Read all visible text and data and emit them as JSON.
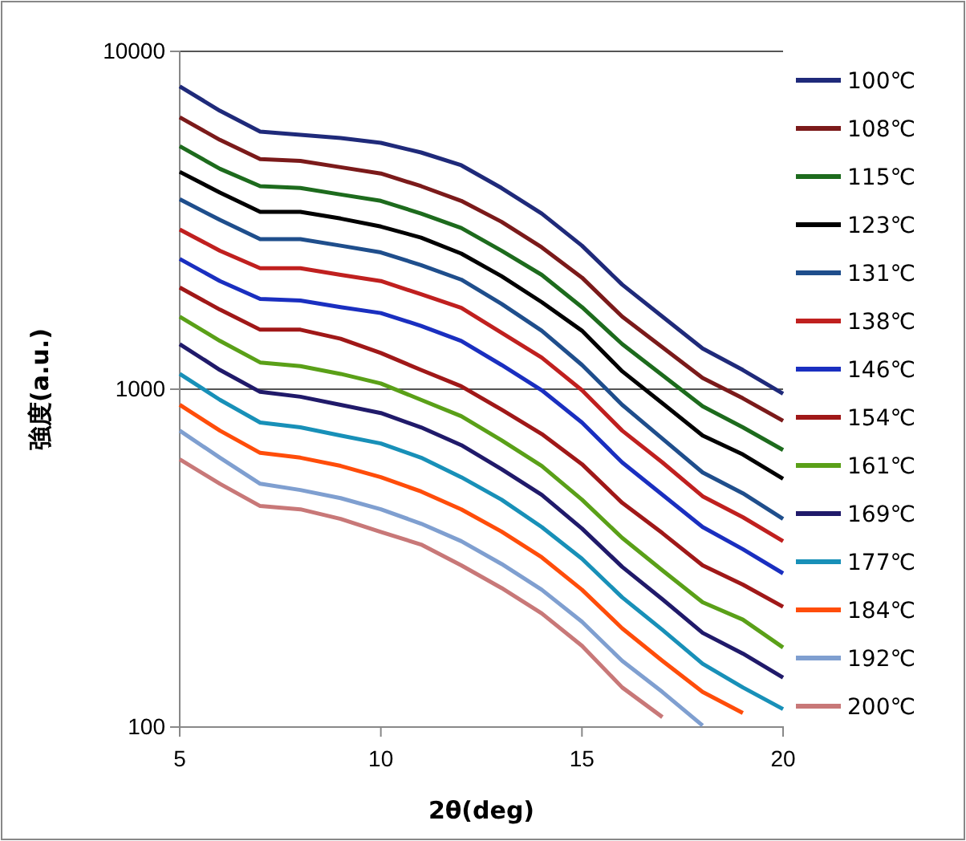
{
  "chart_data": {
    "type": "line",
    "xlabel": "2θ(deg)",
    "ylabel": "強度(a.u.)",
    "log": true,
    "grid": "y",
    "legend": "right",
    "marker": "none",
    "line_style": "solid",
    "x": [
      5,
      6,
      7,
      8,
      9,
      10,
      11,
      12,
      13,
      14,
      15,
      16,
      17,
      18,
      19,
      20
    ],
    "xlim": [
      5,
      20
    ],
    "xticks": [
      5,
      10,
      15,
      20
    ],
    "ylim": [
      100,
      10000
    ],
    "yticks": [
      100,
      1000,
      10000
    ],
    "series": [
      {
        "name": "100℃",
        "color": "#1f2a7a",
        "values": [
          7880,
          6670,
          5790,
          5660,
          5540,
          5360,
          5020,
          4600,
          3940,
          3310,
          2660,
          2040,
          1640,
          1320,
          1140,
          970
        ]
      },
      {
        "name": "108℃",
        "color": "#7b1a1a",
        "values": [
          6380,
          5470,
          4800,
          4740,
          4540,
          4350,
          3990,
          3610,
          3130,
          2630,
          2140,
          1640,
          1330,
          1080,
          940,
          806
        ]
      },
      {
        "name": "115℃",
        "color": "#1d6b1d",
        "values": [
          5240,
          4490,
          3990,
          3940,
          3770,
          3610,
          3310,
          3000,
          2570,
          2180,
          1750,
          1360,
          1100,
          890,
          771,
          661
        ]
      },
      {
        "name": "123℃",
        "color": "#000000",
        "values": [
          4400,
          3820,
          3350,
          3350,
          3200,
          3030,
          2810,
          2520,
          2160,
          1810,
          1490,
          1130,
          909,
          729,
          641,
          543
        ]
      },
      {
        "name": "131℃",
        "color": "#1f4e8c",
        "values": [
          3650,
          3170,
          2780,
          2780,
          2660,
          2540,
          2330,
          2110,
          1790,
          1490,
          1180,
          899,
          714,
          567,
          492,
          413
        ]
      },
      {
        "name": "138℃",
        "color": "#c0201f",
        "values": [
          2970,
          2570,
          2280,
          2280,
          2180,
          2090,
          1910,
          1740,
          1470,
          1240,
          993,
          754,
          607,
          482,
          418,
          355
        ]
      },
      {
        "name": "146℃",
        "color": "#1a2fc0",
        "values": [
          2430,
          2090,
          1850,
          1830,
          1750,
          1680,
          1540,
          1390,
          1180,
          993,
          797,
          607,
          487,
          391,
          336,
          285
        ]
      },
      {
        "name": "154℃",
        "color": "#a01818",
        "values": [
          2000,
          1720,
          1500,
          1500,
          1410,
          1280,
          1140,
          1020,
          870,
          737,
          600,
          461,
          375,
          301,
          264,
          227
        ]
      },
      {
        "name": "161℃",
        "color": "#5aa018",
        "values": [
          1640,
          1390,
          1200,
          1170,
          1110,
          1040,
          930,
          832,
          706,
          593,
          471,
          363,
          291,
          234,
          208,
          172
        ]
      },
      {
        "name": "169℃",
        "color": "#201a6a",
        "values": [
          1360,
          1140,
          982,
          950,
          899,
          850,
          771,
          683,
          580,
          487,
          387,
          298,
          239,
          190,
          165,
          140
        ]
      },
      {
        "name": "177℃",
        "color": "#1890b8",
        "values": [
          1110,
          930,
          797,
          771,
          729,
          691,
          627,
          549,
          471,
          391,
          315,
          242,
          194,
          154,
          131,
          113
        ]
      },
      {
        "name": "184℃",
        "color": "#ff4d0a",
        "values": [
          899,
          754,
          648,
          627,
          593,
          549,
          498,
          441,
          379,
          318,
          255,
          196,
          157,
          127,
          110,
          null
        ]
      },
      {
        "name": "192℃",
        "color": "#7f9fd0",
        "values": [
          754,
          627,
          525,
          503,
          476,
          441,
          400,
          355,
          304,
          255,
          205,
          157,
          127,
          101,
          null,
          null
        ]
      },
      {
        "name": "200℃",
        "color": "#c87878",
        "values": [
          620,
          525,
          451,
          441,
          413,
          378,
          347,
          301,
          258,
          217,
          174,
          131,
          107,
          null,
          null,
          null
        ]
      }
    ]
  }
}
